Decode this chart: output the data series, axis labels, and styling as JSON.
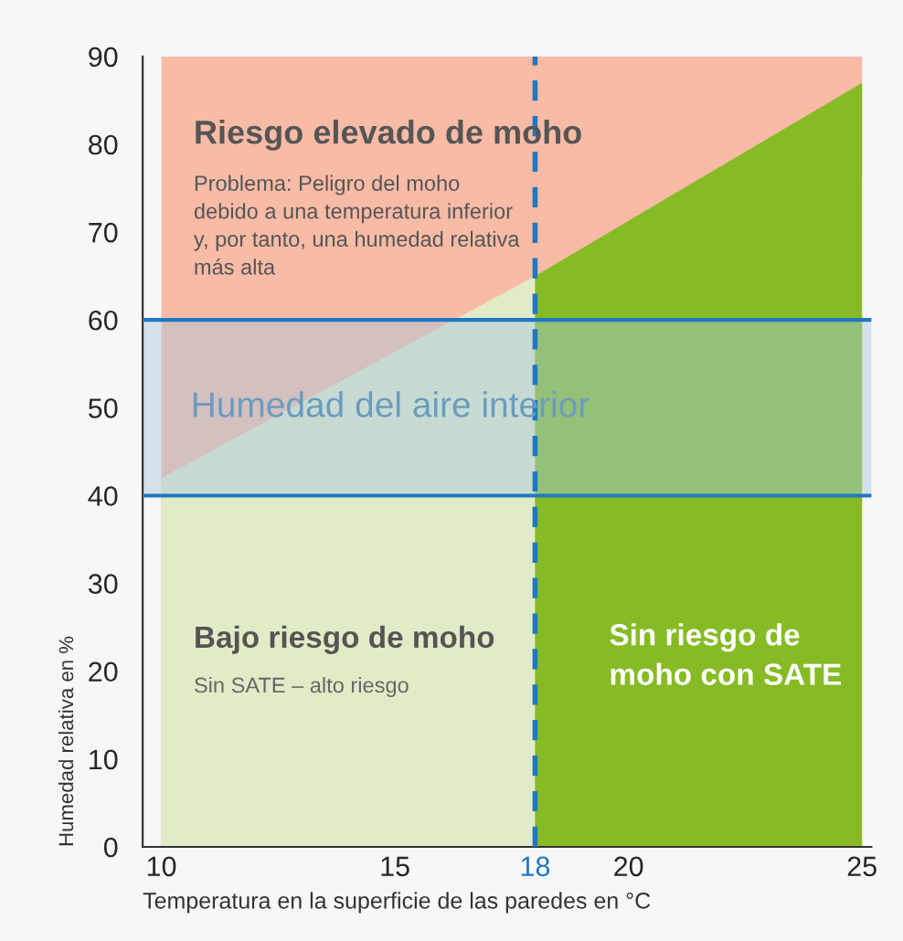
{
  "chart_data": {
    "type": "area",
    "xlabel": "Temperatura en la superficie de las paredes en °C",
    "ylabel": "Humedad relativa en %",
    "xlim": [
      9.6,
      25.2
    ],
    "xticks": [
      10,
      15,
      18,
      20,
      25
    ],
    "ylim": [
      0,
      90
    ],
    "yticks": [
      0,
      10,
      20,
      30,
      40,
      50,
      60,
      70,
      80,
      90
    ],
    "series": [
      {
        "x": [
          10,
          25
        ],
        "values": [
          90,
          90
        ],
        "color": "#f8bba6"
      },
      {
        "x": [
          10,
          18
        ],
        "values": [
          42,
          65
        ],
        "color": "#e2ebc8"
      },
      {
        "x": [
          18,
          25
        ],
        "values": [
          65,
          87
        ],
        "color": "#86bb25"
      }
    ],
    "bands": [
      {
        "axis": "y",
        "from": 40,
        "to": 60,
        "label": "Humedad del aire interior",
        "color": "#a9c8de"
      }
    ],
    "ref_lines": [
      {
        "axis": "y",
        "value": 40,
        "color": "#1f78c1",
        "line_style": "solid"
      },
      {
        "axis": "y",
        "value": 60,
        "color": "#1f78c1",
        "line_style": "solid"
      },
      {
        "axis": "x",
        "value": 18,
        "color": "#1f78c1",
        "line_style": "dashed"
      }
    ],
    "annotations": [
      "Riesgo elevado de moho",
      "Problema: Peligro del moho\ndebido a una temperatura inferior\ny, por tanto, una humedad relativa\nmás alta",
      "Bajo riesgo de moho",
      "Sin SATE – alto riesgo",
      "Sin riesgo de\nmoho con SATE"
    ],
    "grid": false,
    "legend": false
  }
}
